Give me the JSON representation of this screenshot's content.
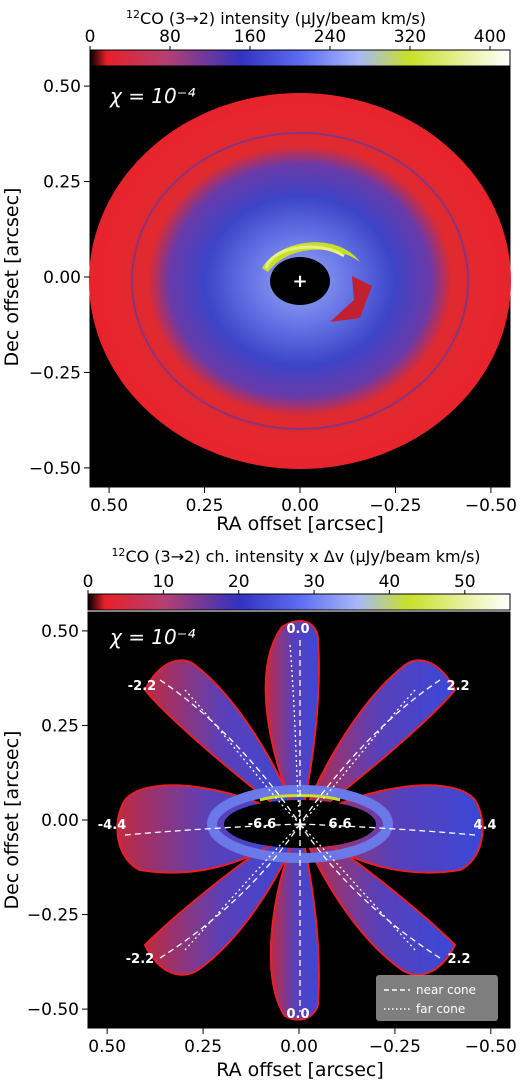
{
  "colors": {
    "background": "#000000",
    "lowIntensity": "#e8202a",
    "midIntensity": "#3c3cc8",
    "highIntensity": "#b0d020",
    "peakIntensity": "#ffffff"
  },
  "chart_data": [
    {
      "type": "heatmap",
      "title_prefix": "12",
      "title": "CO (3→2) intensity (μJy/beam km/s)",
      "colorbar": {
        "ticks": [
          "0",
          "80",
          "160",
          "240",
          "320",
          "400"
        ],
        "range": [
          0,
          420
        ],
        "colors": [
          "#000000",
          "#e6202a",
          "#b54070",
          "#3232c0",
          "#5c6cf0",
          "#a8b8f8",
          "#c8e028",
          "#ffffff"
        ]
      },
      "annotation": "χ = 10⁻⁴",
      "xlabel": "RA offset [arcsec]",
      "ylabel": "Dec offset [arcsec]",
      "xticks": [
        "0.50",
        "0.25",
        "0.00",
        "−0.25",
        "−0.50"
      ],
      "yticks": [
        "0.50",
        "0.25",
        "0.00",
        "−0.25",
        "−0.50"
      ],
      "xlim": [
        0.55,
        -0.55
      ],
      "ylim": [
        -0.55,
        0.55
      ],
      "source_marker": "+"
    },
    {
      "type": "heatmap",
      "title_prefix": "12",
      "title": "CO (3→2) ch. intensity x Δv (μJy/beam km/s)",
      "colorbar": {
        "ticks": [
          "0",
          "10",
          "20",
          "30",
          "40",
          "50"
        ],
        "range": [
          0,
          56
        ],
        "colors": [
          "#000000",
          "#e6202a",
          "#b54070",
          "#3232c0",
          "#5c6cf0",
          "#a8b8f8",
          "#c8e028",
          "#ffffff"
        ]
      },
      "annotation": "χ = 10⁻⁴",
      "xlabel": "RA offset [arcsec]",
      "ylabel": "Dec offset [arcsec]",
      "xticks": [
        "0.50",
        "0.25",
        "0.00",
        "−0.25",
        "−0.50"
      ],
      "yticks": [
        "0.50",
        "0.25",
        "0.00",
        "−0.25",
        "−0.50"
      ],
      "xlim": [
        0.55,
        -0.55
      ],
      "ylim": [
        -0.55,
        0.55
      ],
      "source_marker": "+",
      "channel_velocities": [
        "0.0",
        "-2.2",
        "2.2",
        "-4.4",
        "4.4",
        "-6.6",
        "6.6",
        "-2.2",
        "2.2",
        "0.0"
      ],
      "legend": {
        "entries": [
          "near cone",
          "far cone"
        ],
        "placement": "lower-right"
      }
    }
  ]
}
